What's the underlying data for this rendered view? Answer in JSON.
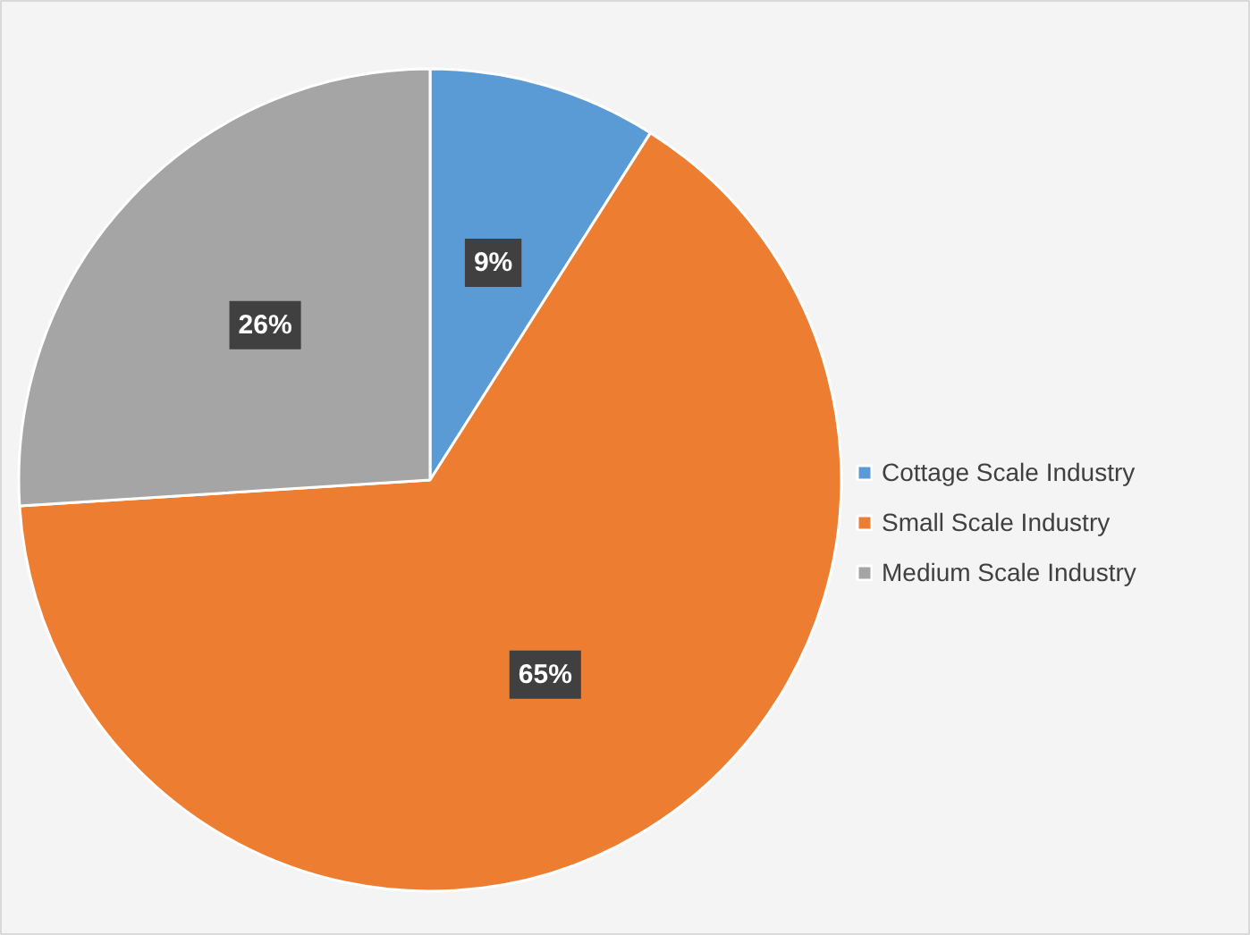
{
  "chart_data": {
    "type": "pie",
    "categories": [
      "Cottage Scale Industry",
      "Small Scale Industry",
      "Medium Scale Industry"
    ],
    "values": [
      9,
      65,
      26
    ],
    "colors": [
      "#5b9bd5",
      "#ed7d31",
      "#a5a5a5"
    ],
    "value_labels": [
      "9%",
      "65%",
      "26%"
    ],
    "legend": "right"
  }
}
